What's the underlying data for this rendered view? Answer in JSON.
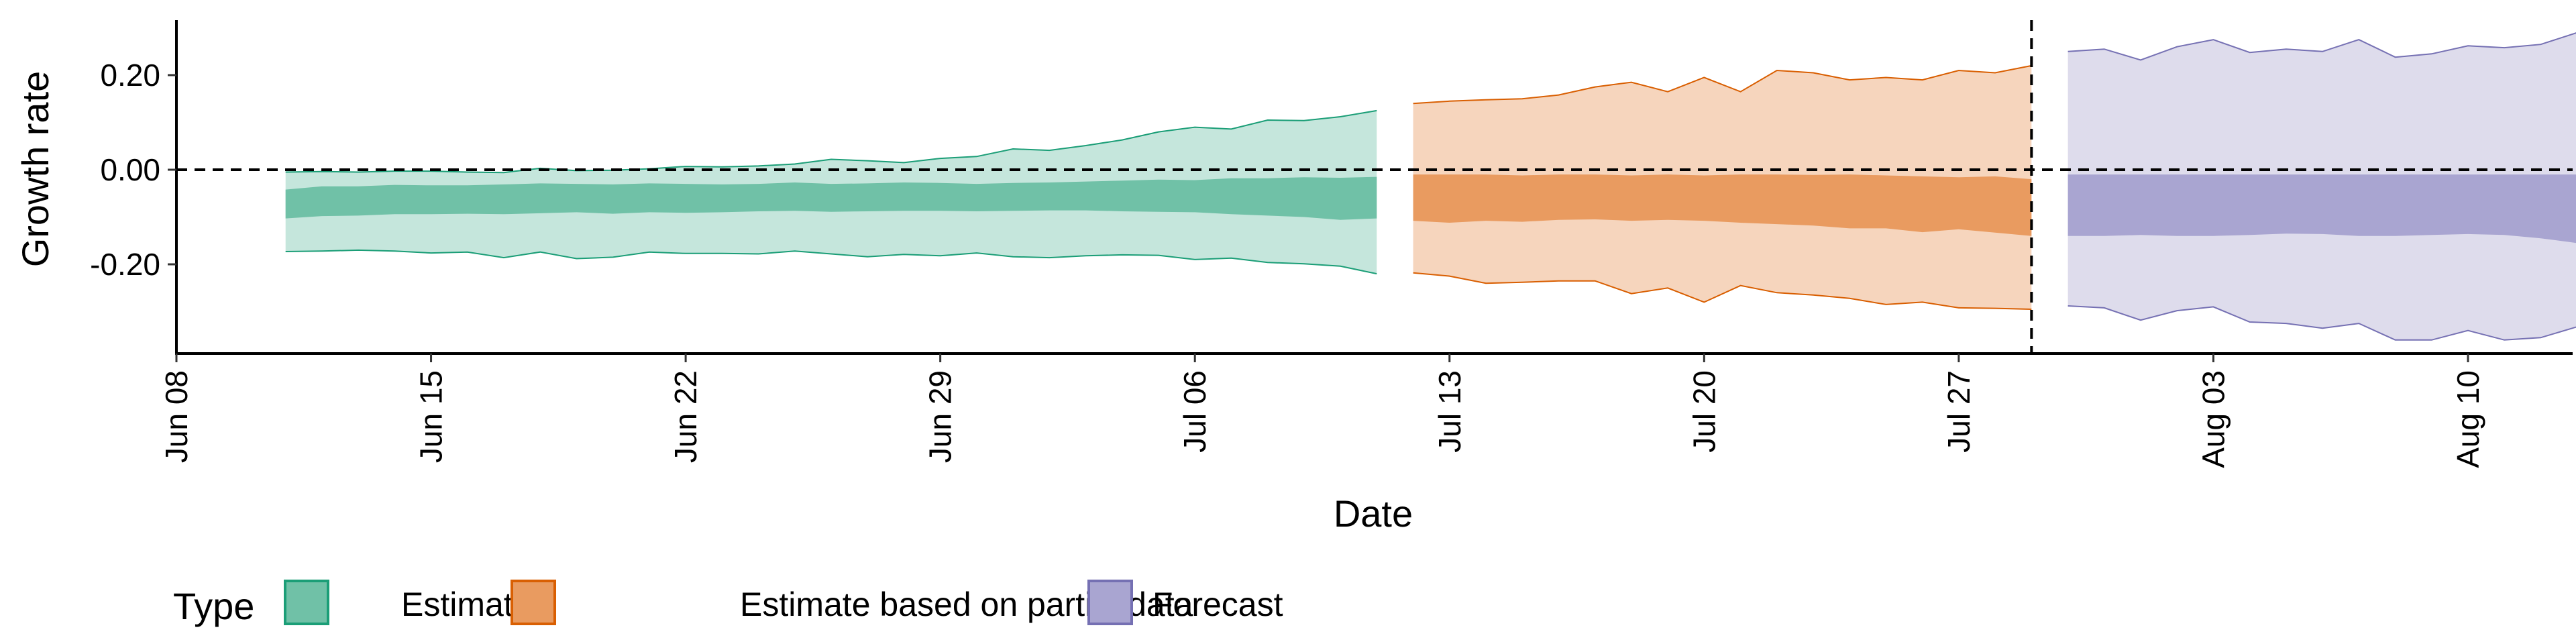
{
  "chart_data": {
    "type": "area",
    "xlabel": "Date",
    "ylabel": "Growth rate",
    "x_tick_labels": [
      "Jun 08",
      "Jun 15",
      "Jun 22",
      "Jun 29",
      "Jul 06",
      "Jul 13",
      "Jul 20",
      "Jul 27",
      "Aug 03",
      "Aug 10"
    ],
    "x_ticks": [
      "2020-06-08",
      "2020-06-15",
      "2020-06-22",
      "2020-06-29",
      "2020-07-06",
      "2020-07-13",
      "2020-07-20",
      "2020-07-27",
      "2020-08-03",
      "2020-08-10"
    ],
    "xlim": [
      "2020-06-08",
      "2020-08-15"
    ],
    "y_ticks": [
      -0.2,
      0,
      0.2
    ],
    "y_tick_labels": [
      "-0.20",
      "0.00",
      "0.20"
    ],
    "ylim": [
      -0.4,
      0.32
    ],
    "hline": 0,
    "vline": "2020-07-29",
    "grid": false,
    "legend": {
      "title": "Type",
      "position": "bottom",
      "entries": [
        "Estimate",
        "Estimate based on partial data",
        "Forecast"
      ]
    },
    "colors": {
      "Estimate": {
        "inner": "#70c1a7",
        "outer": "#c5e6dc",
        "line": "#1b9e77"
      },
      "Estimate based on partial data": {
        "inner": "#e99b60",
        "outer": "#f6d5bd",
        "line": "#d95f02"
      },
      "Forecast": {
        "inner": "#a9a5d1",
        "outer": "#dedcec",
        "line": "#7570b3"
      }
    },
    "series": [
      {
        "name": "Estimate",
        "x": [
          "2020-06-11",
          "2020-06-12",
          "2020-06-13",
          "2020-06-14",
          "2020-06-15",
          "2020-06-16",
          "2020-06-17",
          "2020-06-18",
          "2020-06-19",
          "2020-06-20",
          "2020-06-21",
          "2020-06-22",
          "2020-06-23",
          "2020-06-24",
          "2020-06-25",
          "2020-06-26",
          "2020-06-27",
          "2020-06-28",
          "2020-06-29",
          "2020-06-30",
          "2020-07-01",
          "2020-07-02",
          "2020-07-03",
          "2020-07-04",
          "2020-07-05",
          "2020-07-06",
          "2020-07-07",
          "2020-07-08",
          "2020-07-09",
          "2020-07-10",
          "2020-07-11"
        ],
        "upper_90": [
          -0.005,
          -0.004,
          -0.005,
          -0.003,
          -0.003,
          -0.005,
          -0.006,
          0.003,
          -0.002,
          -0.001,
          0.002,
          0.007,
          0.006,
          0.008,
          0.012,
          0.022,
          0.019,
          0.015,
          0.024,
          0.028,
          0.044,
          0.041,
          0.051,
          0.063,
          0.08,
          0.09,
          0.086,
          0.105,
          0.104,
          0.112,
          0.125
        ],
        "upper_50": [
          -0.042,
          -0.035,
          -0.035,
          -0.032,
          -0.033,
          -0.033,
          -0.031,
          -0.029,
          -0.03,
          -0.031,
          -0.029,
          -0.03,
          -0.031,
          -0.03,
          -0.027,
          -0.03,
          -0.029,
          -0.027,
          -0.028,
          -0.03,
          -0.028,
          -0.027,
          -0.025,
          -0.023,
          -0.021,
          -0.022,
          -0.018,
          -0.018,
          -0.016,
          -0.017,
          -0.015
        ],
        "lower_50": [
          -0.103,
          -0.098,
          -0.097,
          -0.094,
          -0.094,
          -0.093,
          -0.094,
          -0.092,
          -0.09,
          -0.093,
          -0.09,
          -0.091,
          -0.09,
          -0.088,
          -0.087,
          -0.089,
          -0.088,
          -0.087,
          -0.087,
          -0.088,
          -0.087,
          -0.086,
          -0.086,
          -0.088,
          -0.089,
          -0.09,
          -0.094,
          -0.097,
          -0.1,
          -0.106,
          -0.103
        ],
        "lower_90": [
          -0.173,
          -0.172,
          -0.17,
          -0.172,
          -0.176,
          -0.174,
          -0.186,
          -0.174,
          -0.188,
          -0.185,
          -0.174,
          -0.177,
          -0.177,
          -0.178,
          -0.172,
          -0.178,
          -0.184,
          -0.179,
          -0.182,
          -0.176,
          -0.184,
          -0.186,
          -0.182,
          -0.18,
          -0.181,
          -0.19,
          -0.187,
          -0.196,
          -0.199,
          -0.204,
          -0.22
        ]
      },
      {
        "name": "Estimate based on partial data",
        "x": [
          "2020-07-12",
          "2020-07-13",
          "2020-07-14",
          "2020-07-15",
          "2020-07-16",
          "2020-07-17",
          "2020-07-18",
          "2020-07-19",
          "2020-07-20",
          "2020-07-21",
          "2020-07-22",
          "2020-07-23",
          "2020-07-24",
          "2020-07-25",
          "2020-07-26",
          "2020-07-27",
          "2020-07-28",
          "2020-07-29"
        ],
        "upper_90": [
          0.14,
          0.145,
          0.148,
          0.15,
          0.158,
          0.175,
          0.185,
          0.165,
          0.195,
          0.165,
          0.21,
          0.205,
          0.19,
          0.195,
          0.19,
          0.21,
          0.205,
          0.22
        ],
        "upper_50": [
          -0.01,
          -0.01,
          -0.01,
          -0.012,
          -0.01,
          -0.01,
          -0.012,
          -0.01,
          -0.012,
          -0.01,
          -0.01,
          -0.011,
          -0.01,
          -0.012,
          -0.014,
          -0.016,
          -0.014,
          -0.02
        ],
        "lower_50": [
          -0.108,
          -0.112,
          -0.108,
          -0.11,
          -0.106,
          -0.105,
          -0.108,
          -0.106,
          -0.108,
          -0.112,
          -0.115,
          -0.118,
          -0.124,
          -0.124,
          -0.132,
          -0.126,
          -0.133,
          -0.14
        ],
        "lower_90": [
          -0.218,
          -0.225,
          -0.24,
          -0.238,
          -0.235,
          -0.235,
          -0.262,
          -0.25,
          -0.28,
          -0.245,
          -0.26,
          -0.265,
          -0.272,
          -0.285,
          -0.28,
          -0.292,
          -0.293,
          -0.295
        ]
      },
      {
        "name": "Forecast",
        "x": [
          "2020-07-30",
          "2020-07-31",
          "2020-08-01",
          "2020-08-02",
          "2020-08-03",
          "2020-08-04",
          "2020-08-05",
          "2020-08-06",
          "2020-08-07",
          "2020-08-08",
          "2020-08-09",
          "2020-08-10",
          "2020-08-11",
          "2020-08-12",
          "2020-08-13"
        ],
        "upper_90": [
          0.25,
          0.255,
          0.232,
          0.26,
          0.275,
          0.248,
          0.255,
          0.25,
          0.275,
          0.238,
          0.245,
          0.262,
          0.258,
          0.265,
          0.29
        ],
        "upper_50": [
          -0.01,
          -0.01,
          -0.01,
          -0.01,
          -0.01,
          -0.01,
          -0.01,
          -0.01,
          -0.01,
          -0.01,
          -0.01,
          -0.01,
          -0.01,
          -0.01,
          -0.01
        ],
        "lower_50": [
          -0.14,
          -0.14,
          -0.138,
          -0.14,
          -0.14,
          -0.138,
          -0.135,
          -0.136,
          -0.14,
          -0.14,
          -0.138,
          -0.136,
          -0.138,
          -0.145,
          -0.155
        ],
        "lower_90": [
          -0.288,
          -0.292,
          -0.318,
          -0.298,
          -0.29,
          -0.322,
          -0.325,
          -0.335,
          -0.325,
          -0.36,
          -0.36,
          -0.34,
          -0.36,
          -0.355,
          -0.332
        ]
      }
    ]
  }
}
